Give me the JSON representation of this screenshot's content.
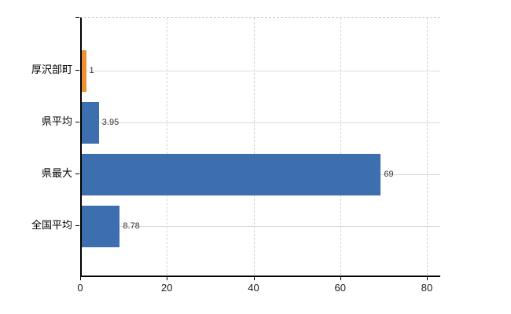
{
  "chart_data": {
    "type": "bar",
    "orientation": "horizontal",
    "title": "",
    "xlabel": "",
    "ylabel": "",
    "categories": [
      "厚沢部町",
      "県平均",
      "県最大",
      "全国平均"
    ],
    "values": [
      1,
      3.95,
      69,
      8.78
    ],
    "value_labels": [
      "1",
      "3.95",
      "69",
      "8.78"
    ],
    "bar_colors": [
      "#EC9233",
      "#3D6EAE",
      "#3D6EAE",
      "#3D6EAE"
    ],
    "x_ticks": [
      0,
      20,
      40,
      60,
      80
    ],
    "x_tick_labels": [
      "0",
      "20",
      "40",
      "60",
      "80"
    ],
    "xlim": [
      0,
      83.1
    ],
    "grid": true,
    "legend": false,
    "colors": {
      "bar_blue": "#3D6EAE",
      "bar_orange": "#EC9233",
      "gridline": "#D6DAD6",
      "axis": "#000000",
      "tick_label": "#1A1A1A",
      "value_label": "#333333",
      "background": "#FFFFFF"
    }
  }
}
